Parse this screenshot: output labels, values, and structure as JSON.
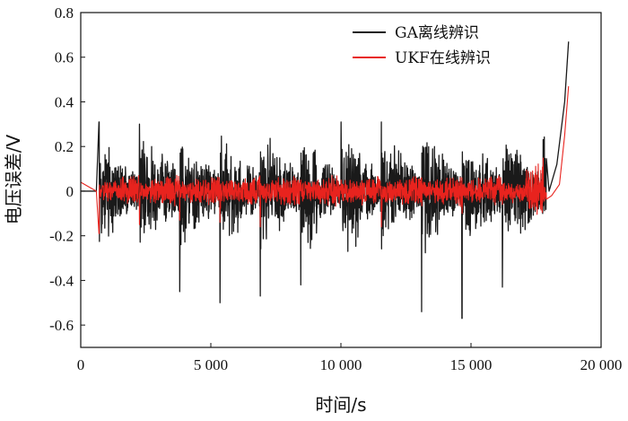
{
  "chart_data": {
    "type": "line",
    "xlabel": "时间/s",
    "ylabel": "电压误差/V",
    "xlim": [
      0,
      20000
    ],
    "ylim": [
      -0.7,
      0.8
    ],
    "x_ticks": [
      0,
      5000,
      10000,
      15000,
      20000
    ],
    "x_tick_labels": [
      "0",
      "5 000",
      "10 000",
      "15 000",
      "20 000"
    ],
    "y_ticks": [
      0.8,
      0.6,
      0.4,
      0.2,
      0,
      -0.2,
      -0.4,
      -0.6
    ],
    "y_tick_labels": [
      "0.8",
      "0.6",
      "0.4",
      "0.2",
      "0",
      "-0.2",
      "-0.4",
      "-0.6"
    ],
    "grid": false,
    "legend_position": "top-right",
    "series": [
      {
        "name": "GA离线辨识",
        "color": "#1a1a1a",
        "pulse_times": [
          700,
          2250,
          3800,
          5350,
          6900,
          8450,
          10000,
          11550,
          13100,
          14650,
          16200,
          17750
        ],
        "pulse_peaks_max": [
          0.31,
          0.3,
          0.31,
          0.31,
          0.32,
          0.31,
          0.31,
          0.31,
          0.31,
          0.32,
          0.31,
          0.42
        ],
        "pulse_peaks_min": [
          -0.41,
          -0.45,
          -0.45,
          -0.5,
          -0.47,
          -0.42,
          -0.46,
          -0.47,
          -0.54,
          -0.57,
          -0.43,
          -0.1
        ],
        "noise_amplitude_start": 0.2,
        "noise_amplitude_end": 0.07,
        "x": [
          0,
          600,
          18000,
          18300,
          18600,
          18750
        ],
        "y": [
          0.0,
          0.0,
          0.0,
          0.12,
          0.4,
          0.67
        ]
      },
      {
        "name": "UKF在线辨识",
        "color": "#e8231e",
        "pulse_times": [
          700,
          2250,
          3800,
          5350,
          6900,
          8450,
          10000,
          11550,
          13100,
          14650,
          16200,
          17750
        ],
        "pulse_peaks_max": [
          0.05,
          0.05,
          0.05,
          0.05,
          0.06,
          0.05,
          0.05,
          0.05,
          0.06,
          0.06,
          0.05,
          0.27
        ],
        "pulse_peaks_min": [
          -0.19,
          -0.15,
          -0.13,
          -0.14,
          -0.16,
          -0.21,
          -0.17,
          -0.16,
          -0.12,
          -0.1,
          -0.06,
          -0.05
        ],
        "noise_amplitude_start": 0.035,
        "noise_amplitude_end": 0.06,
        "x": [
          0,
          300,
          600,
          17900,
          18100,
          18400,
          18600,
          18750
        ],
        "y": [
          0.04,
          0.02,
          0.0,
          -0.01,
          -0.02,
          0.03,
          0.25,
          0.47
        ]
      }
    ]
  }
}
